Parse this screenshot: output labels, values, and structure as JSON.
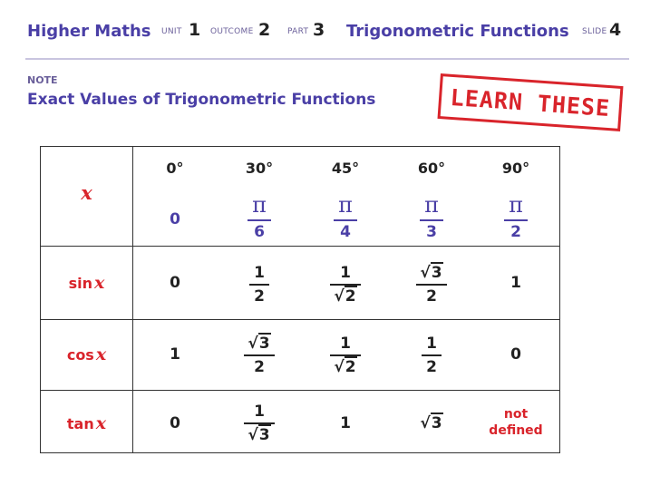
{
  "header": {
    "course": "Higher Maths",
    "unit_label": "UNIT",
    "unit": "1",
    "outcome_label": "OUTCOME",
    "outcome": "2",
    "part_label": "PART",
    "part": "3",
    "topic": "Trigonometric Functions",
    "slide_label": "SLIDE",
    "slide": "4"
  },
  "note_label": "NOTE",
  "subtitle": "Exact Values of Trigonometric Functions",
  "stamp": "LEARN THESE",
  "table": {
    "x_symbol": "x",
    "degrees": [
      "0°",
      "30°",
      "45°",
      "60°",
      "90°"
    ],
    "radians": {
      "zero": "0",
      "pi": "π",
      "denominators": [
        "6",
        "4",
        "3",
        "2"
      ]
    },
    "rows": {
      "sin": {
        "name": "sin"
      },
      "cos": {
        "name": "cos"
      },
      "tan": {
        "name": "tan"
      }
    },
    "symbols": {
      "one": "1",
      "zero": "0",
      "two": "2",
      "three": "3",
      "sqrt": "√"
    },
    "not_defined_line1": "not",
    "not_defined_line2": "defined",
    "colors": {
      "accent": "#4a3fa6",
      "red": "#d9242b"
    }
  }
}
